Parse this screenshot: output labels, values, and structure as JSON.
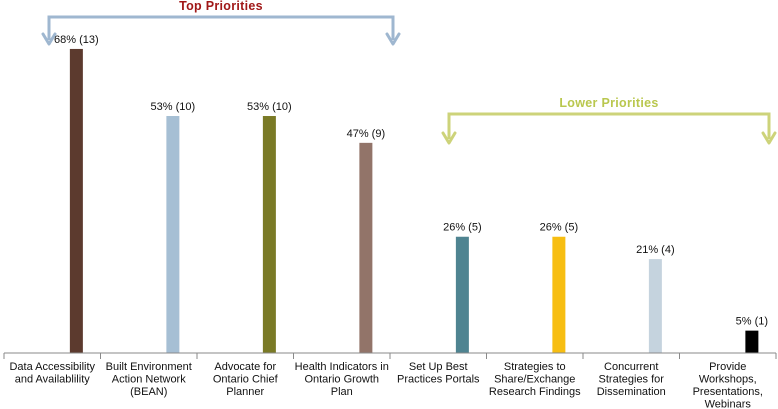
{
  "chart_data": {
    "type": "bar",
    "categories": [
      [
        "Data Accessibility",
        "and Availablility"
      ],
      [
        "Built Environment",
        "Action Network",
        "(BEAN)"
      ],
      [
        "Advocate for",
        "Ontario Chief",
        "Planner"
      ],
      [
        "Health Indicators in",
        "Ontario Growth",
        "Plan"
      ],
      [
        "Set Up Best",
        "Practices Portals"
      ],
      [
        "Strategies to",
        "Share/Exchange",
        "Research Findings"
      ],
      [
        "Concurrent",
        "Strategies for",
        "Dissemination"
      ],
      [
        "Provide",
        "Workshops,",
        "Presentations,",
        "Webinars"
      ]
    ],
    "values": [
      68,
      53,
      53,
      47,
      26,
      26,
      21,
      5
    ],
    "counts": [
      13,
      10,
      10,
      9,
      5,
      5,
      4,
      1
    ],
    "value_labels": [
      "68% (13)",
      "53% (10)",
      "53% (10)",
      "47% (9)",
      "26% (5)",
      "26% (5)",
      "21% (4)",
      "5% (1)"
    ],
    "colors": [
      "#5c3a2e",
      "#a6bfd4",
      "#7a7a26",
      "#927469",
      "#4f8491",
      "#f7be12",
      "#c5d3de",
      "#000000"
    ],
    "ylim": [
      0,
      70
    ],
    "grid": false,
    "annotations": [
      {
        "text": "Top  Priorities",
        "color": "#a01818",
        "bracket_color": "#9fb7d0",
        "spans": [
          0,
          3
        ]
      },
      {
        "text": "Lower  Priorities",
        "color": "#b9c74e",
        "bracket_color": "#cdd37a",
        "spans": [
          4,
          7
        ]
      }
    ]
  }
}
